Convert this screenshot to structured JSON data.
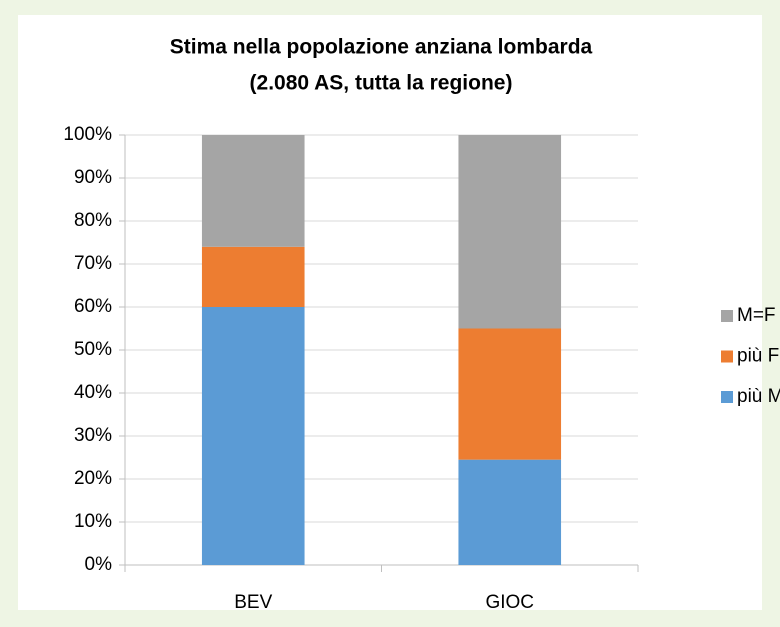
{
  "chart_data": {
    "type": "stacked_bar",
    "title_lines": [
      "Stima nella popolazione anziana lombarda",
      "(2.080 AS, tutta la regione)"
    ],
    "categories": [
      "BEV",
      "GIOC"
    ],
    "series": [
      {
        "name": "più M",
        "color": "#5b9bd5",
        "values": [
          60,
          24.5
        ]
      },
      {
        "name": "più F",
        "color": "#ed7d31",
        "values": [
          14,
          30.5
        ]
      },
      {
        "name": "M=F",
        "color": "#a5a5a5",
        "values": [
          26,
          45
        ]
      }
    ],
    "ylim": [
      0,
      100
    ],
    "yticks": [
      {
        "value": 0,
        "label": "0%"
      },
      {
        "value": 10,
        "label": "10%"
      },
      {
        "value": 20,
        "label": "20%"
      },
      {
        "value": 30,
        "label": "30%"
      },
      {
        "value": 40,
        "label": "40%"
      },
      {
        "value": 50,
        "label": "50%"
      },
      {
        "value": 60,
        "label": "60%"
      },
      {
        "value": 70,
        "label": "70%"
      },
      {
        "value": 80,
        "label": "80%"
      },
      {
        "value": 90,
        "label": "90%"
      },
      {
        "value": 100,
        "label": "100%"
      }
    ],
    "grid": true,
    "legend": "right"
  }
}
